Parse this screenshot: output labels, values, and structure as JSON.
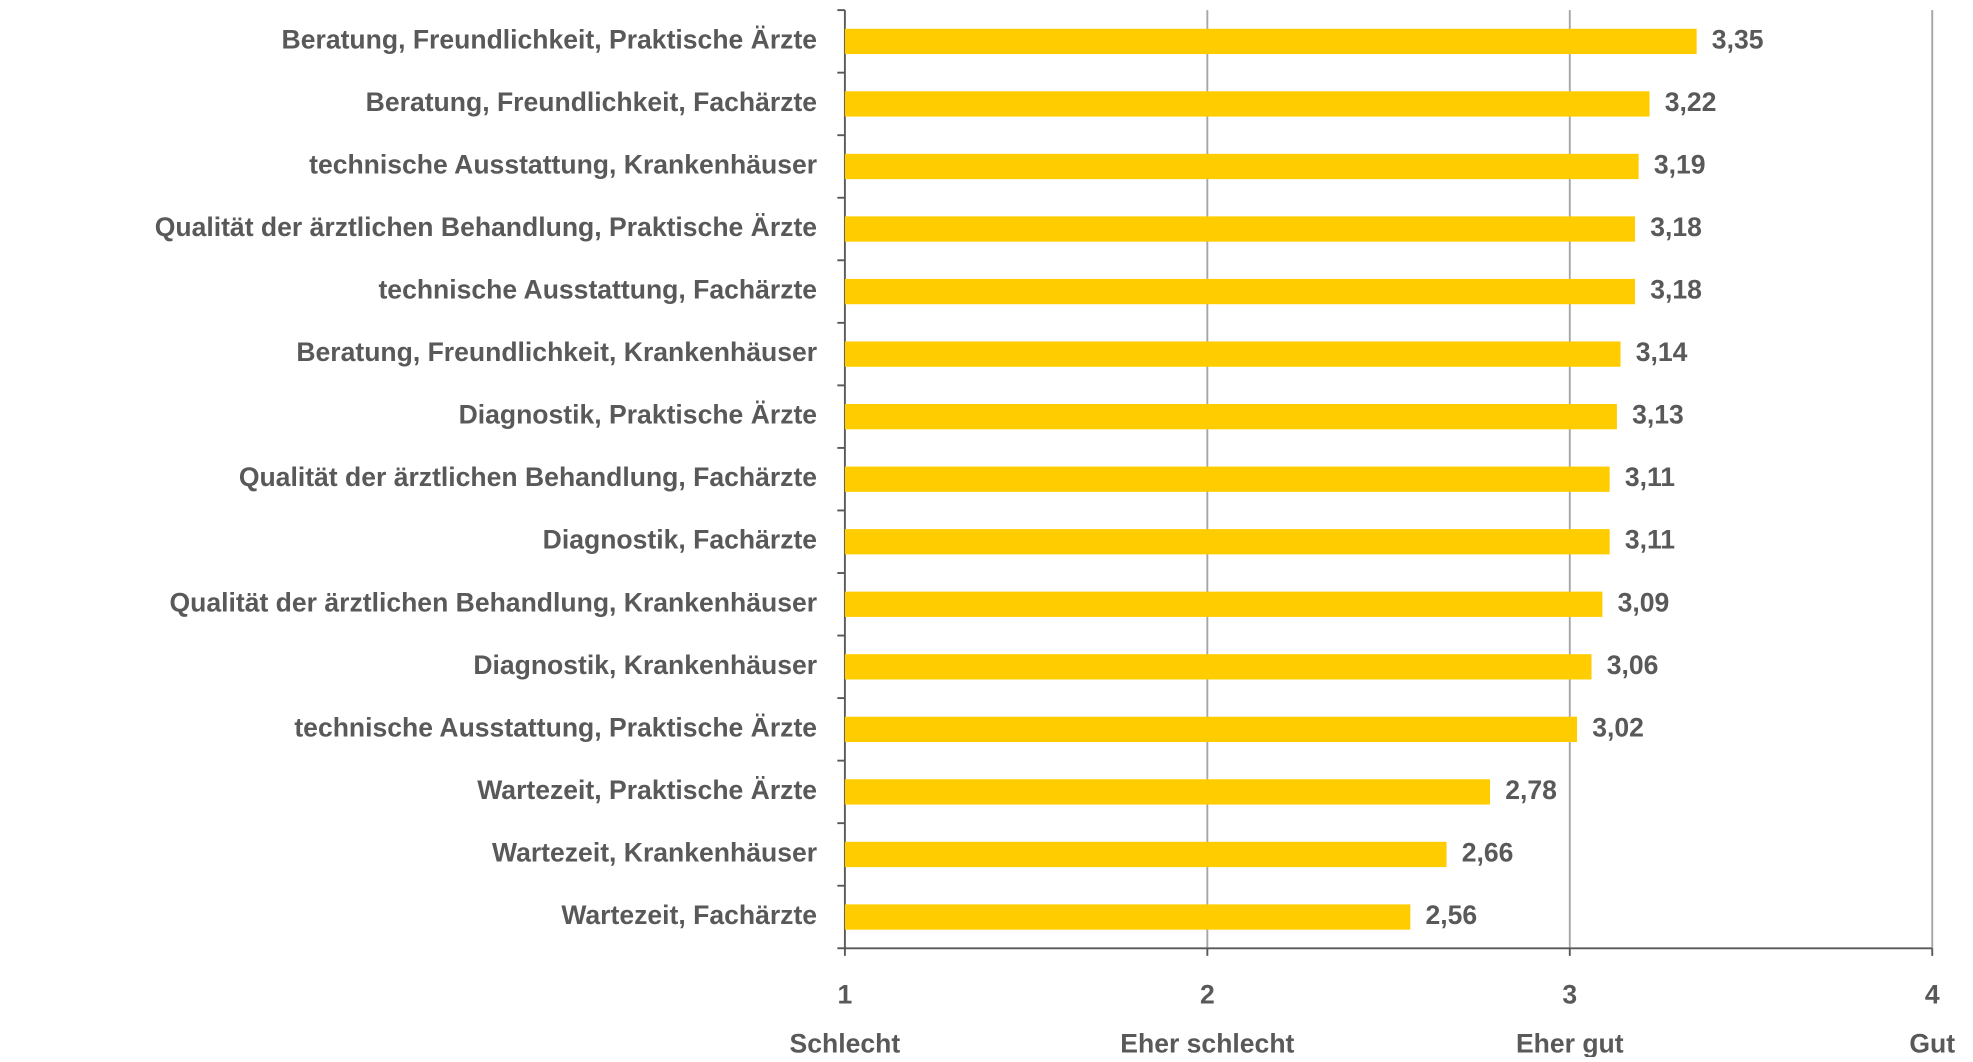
{
  "chart_data": {
    "type": "hbar",
    "categories": [
      "Beratung, Freundlichkeit, Praktische Ärzte",
      "Beratung, Freundlichkeit, Fachärzte",
      "technische Ausstattung, Krankenhäuser",
      "Qualität der ärztlichen Behandlung, Praktische Ärzte",
      "technische Ausstattung, Fachärzte",
      "Beratung, Freundlichkeit, Krankenhäuser",
      "Diagnostik, Praktische Ärzte",
      "Qualität der ärztlichen Behandlung, Fachärzte",
      "Diagnostik, Fachärzte",
      "Qualität der ärztlichen Behandlung, Krankenhäuser",
      "Diagnostik, Krankenhäuser",
      "technische Ausstattung, Praktische Ärzte",
      "Wartezeit, Praktische Ärzte",
      "Wartezeit, Krankenhäuser",
      "Wartezeit, Fachärzte"
    ],
    "values": [
      3.35,
      3.22,
      3.19,
      3.18,
      3.18,
      3.14,
      3.13,
      3.11,
      3.11,
      3.09,
      3.06,
      3.02,
      2.78,
      2.66,
      2.56
    ],
    "value_labels": [
      "3,35",
      "3,22",
      "3,19",
      "3,18",
      "3,18",
      "3,14",
      "3,13",
      "3,11",
      "3,11",
      "3,09",
      "3,06",
      "3,02",
      "2,78",
      "2,66",
      "2,56"
    ],
    "color": "#FFCC00",
    "xlim": [
      1,
      4
    ],
    "xticks": [
      1,
      2,
      3,
      4
    ],
    "xtick_names": [
      "Schlecht",
      "Eher schlecht",
      "Eher gut",
      "Gut"
    ],
    "grid": true
  }
}
